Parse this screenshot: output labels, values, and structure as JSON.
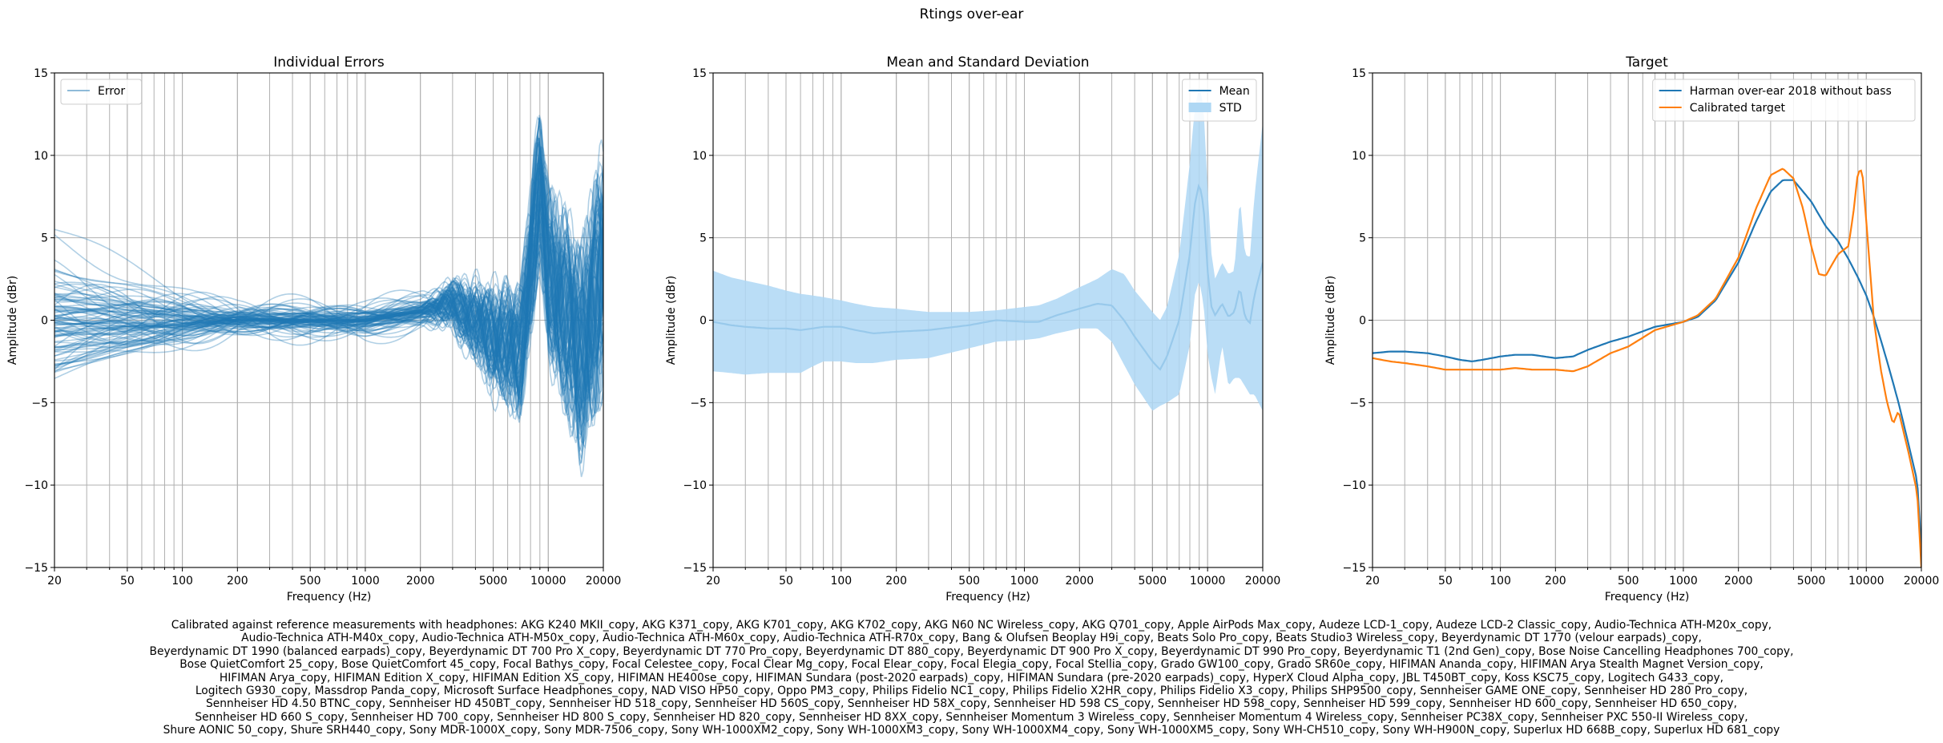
{
  "suptitle": "Rtings over-ear",
  "chart_data": [
    {
      "type": "line",
      "title": "Individual Errors",
      "xlabel": "Frequency (Hz)",
      "ylabel": "Amplitude (dBr)",
      "xscale": "log",
      "xlim": [
        20,
        20000
      ],
      "ylim": [
        -15,
        15
      ],
      "xticks": [
        20,
        50,
        100,
        200,
        500,
        1000,
        2000,
        5000,
        10000,
        20000
      ],
      "xtick_labels": [
        "20",
        "50",
        "100",
        "200",
        "500",
        "1000",
        "2000",
        "5000",
        "10000",
        "20000"
      ],
      "yticks": [
        -15,
        -10,
        -5,
        0,
        5,
        10,
        15
      ],
      "ytick_labels": [
        "−15",
        "−10",
        "−5",
        "0",
        "5",
        "10",
        "15"
      ],
      "grid": true,
      "legend": {
        "position": "upper-left",
        "entries": [
          "Error"
        ]
      },
      "series": [
        {
          "name": "Error",
          "color": "#1f77b4",
          "alpha": 0.35,
          "count": 97,
          "x": [
            20,
            50,
            100,
            200,
            500,
            1000,
            2000,
            3000,
            5000,
            7000,
            9000,
            10000,
            15000,
            20000
          ],
          "values": [
            0,
            0,
            0,
            0,
            0,
            0,
            0.5,
            1,
            -1,
            -2,
            8,
            3,
            -2,
            3
          ]
        }
      ]
    },
    {
      "type": "line",
      "title": "Mean and Standard Deviation",
      "xlabel": "Frequency (Hz)",
      "ylabel": "Amplitude (dBr)",
      "xscale": "log",
      "xlim": [
        20,
        20000
      ],
      "ylim": [
        -15,
        15
      ],
      "xticks": [
        20,
        50,
        100,
        200,
        500,
        1000,
        2000,
        5000,
        10000,
        20000
      ],
      "xtick_labels": [
        "20",
        "50",
        "100",
        "200",
        "500",
        "1000",
        "2000",
        "5000",
        "10000",
        "20000"
      ],
      "yticks": [
        -15,
        -10,
        -5,
        0,
        5,
        10,
        15
      ],
      "ytick_labels": [
        "−15",
        "−10",
        "−5",
        "0",
        "5",
        "10",
        "15"
      ],
      "grid": true,
      "legend": {
        "position": "upper-right",
        "entries": [
          "Mean",
          "STD"
        ]
      },
      "series": [
        {
          "name": "Mean",
          "color": "#1f77b4",
          "x": [
            20,
            25,
            30,
            40,
            50,
            60,
            70,
            80,
            100,
            120,
            150,
            200,
            300,
            500,
            700,
            1000,
            1200,
            1500,
            2000,
            2500,
            3000,
            3500,
            4000,
            5000,
            5500,
            6000,
            7000,
            8000,
            8500,
            9000,
            9500,
            10000,
            10500,
            11000,
            12000,
            13000,
            14000,
            15000,
            16000,
            17000,
            18000,
            20000
          ],
          "values": [
            -0.1,
            -0.3,
            -0.4,
            -0.5,
            -0.5,
            -0.6,
            -0.5,
            -0.4,
            -0.4,
            -0.6,
            -0.8,
            -0.7,
            -0.6,
            -0.3,
            0.0,
            -0.1,
            -0.1,
            0.3,
            0.7,
            1.0,
            0.9,
            0.0,
            -1.0,
            -2.5,
            -3.0,
            -2.2,
            0.0,
            4.0,
            7.0,
            8.3,
            7.0,
            3.0,
            0.8,
            0.3,
            1.0,
            0.2,
            0.5,
            2.0,
            0.2,
            -0.2,
            1.5,
            3.5
          ]
        },
        {
          "name": "STD",
          "color": "#aed7f4",
          "type": "band",
          "x": [
            20,
            25,
            30,
            40,
            50,
            60,
            70,
            80,
            100,
            120,
            150,
            200,
            300,
            500,
            700,
            1000,
            1200,
            1500,
            2000,
            2500,
            3000,
            3500,
            4000,
            5000,
            5500,
            6000,
            7000,
            8000,
            8500,
            9000,
            9500,
            10000,
            10500,
            11000,
            12000,
            13000,
            14000,
            15000,
            16000,
            17000,
            18000,
            20000
          ],
          "upper": [
            3.0,
            2.6,
            2.4,
            2.1,
            1.8,
            1.6,
            1.5,
            1.4,
            1.2,
            1.0,
            0.8,
            0.7,
            0.5,
            0.5,
            0.6,
            0.8,
            0.9,
            1.3,
            2.0,
            2.5,
            3.1,
            2.8,
            1.8,
            0.5,
            0.0,
            0.8,
            4.0,
            9.5,
            12.8,
            14.2,
            13.0,
            8.0,
            4.0,
            2.5,
            3.5,
            2.8,
            3.0,
            7.5,
            4.0,
            3.8,
            7.5,
            12.0
          ],
          "lower": [
            -3.1,
            -3.2,
            -3.3,
            -3.2,
            -3.2,
            -3.2,
            -2.8,
            -2.5,
            -2.5,
            -2.6,
            -2.6,
            -2.4,
            -2.3,
            -1.7,
            -1.3,
            -1.2,
            -1.1,
            -0.8,
            -0.5,
            -0.5,
            -1.3,
            -2.7,
            -3.9,
            -5.5,
            -5.2,
            -5.0,
            -4.5,
            -1.5,
            1.5,
            2.4,
            1.0,
            -2.0,
            -3.5,
            -4.5,
            -1.5,
            -4.0,
            -3.5,
            -3.5,
            -4.0,
            -4.5,
            -4.5,
            -5.5
          ]
        }
      ]
    },
    {
      "type": "line",
      "title": "Target",
      "xlabel": "Frequency (Hz)",
      "ylabel": "Amplitude (dBr)",
      "xscale": "log",
      "xlim": [
        20,
        20000
      ],
      "ylim": [
        -15,
        15
      ],
      "xticks": [
        20,
        50,
        100,
        200,
        500,
        1000,
        2000,
        5000,
        10000,
        20000
      ],
      "xtick_labels": [
        "20",
        "50",
        "100",
        "200",
        "500",
        "1000",
        "2000",
        "5000",
        "10000",
        "20000"
      ],
      "yticks": [
        -15,
        -10,
        -5,
        0,
        5,
        10,
        15
      ],
      "ytick_labels": [
        "−15",
        "−10",
        "−5",
        "0",
        "5",
        "10",
        "15"
      ],
      "grid": true,
      "legend": {
        "position": "upper-right",
        "entries": [
          "Harman over-ear 2018 without bass",
          "Calibrated target"
        ]
      },
      "series": [
        {
          "name": "Harman over-ear 2018 without bass",
          "color": "#1f77b4",
          "x": [
            20,
            25,
            30,
            40,
            50,
            60,
            70,
            80,
            100,
            120,
            150,
            200,
            250,
            300,
            400,
            500,
            700,
            1000,
            1200,
            1500,
            2000,
            2500,
            3000,
            3500,
            4000,
            5000,
            6000,
            7000,
            8000,
            9000,
            10000,
            11000,
            12000,
            13000,
            15000,
            17000,
            19000,
            20000
          ],
          "values": [
            -2.0,
            -1.9,
            -1.9,
            -2.0,
            -2.2,
            -2.4,
            -2.5,
            -2.4,
            -2.2,
            -2.1,
            -2.1,
            -2.3,
            -2.2,
            -1.8,
            -1.3,
            -1.0,
            -0.4,
            -0.1,
            0.2,
            1.2,
            3.5,
            6.0,
            7.8,
            8.5,
            8.5,
            7.2,
            5.7,
            4.8,
            3.7,
            2.6,
            1.5,
            0.2,
            -1.2,
            -2.5,
            -5.0,
            -7.5,
            -9.8,
            -14.0
          ]
        },
        {
          "name": "Calibrated target",
          "color": "#ff7f0e",
          "x": [
            20,
            25,
            30,
            40,
            50,
            60,
            70,
            80,
            100,
            120,
            150,
            200,
            250,
            300,
            400,
            500,
            700,
            1000,
            1200,
            1500,
            2000,
            2500,
            3000,
            3500,
            4000,
            4500,
            5000,
            5500,
            6000,
            7000,
            8000,
            8500,
            9000,
            9500,
            10000,
            11000,
            12000,
            13000,
            14000,
            15000,
            17000,
            19000,
            20000
          ],
          "values": [
            -2.3,
            -2.5,
            -2.6,
            -2.8,
            -3.0,
            -3.0,
            -3.0,
            -3.0,
            -3.0,
            -2.9,
            -3.0,
            -3.0,
            -3.1,
            -2.8,
            -2.0,
            -1.6,
            -0.6,
            -0.1,
            0.3,
            1.3,
            3.8,
            6.8,
            8.8,
            9.2,
            8.6,
            6.8,
            4.5,
            2.8,
            2.7,
            4.0,
            4.5,
            6.5,
            9.0,
            9.1,
            6.0,
            0.0,
            -3.0,
            -5.0,
            -6.3,
            -5.5,
            -8.0,
            -10.5,
            -15.0
          ]
        }
      ]
    }
  ],
  "footer": [
    "Calibrated against reference measurements with headphones: AKG K240 MKII_copy, AKG K371_copy, AKG K701_copy, AKG K702_copy, AKG N60 NC Wireless_copy, AKG Q701_copy, Apple AirPods Max_copy, Audeze LCD-1_copy, Audeze LCD-2 Classic_copy, Audio-Technica ATH-M20x_copy,",
    "Audio-Technica ATH-M40x_copy, Audio-Technica ATH-M50x_copy, Audio-Technica ATH-M60x_copy, Audio-Technica ATH-R70x_copy, Bang & Olufsen Beoplay H9i_copy, Beats Solo Pro_copy, Beats Studio3 Wireless_copy, Beyerdynamic DT 1770 (velour earpads)_copy,",
    "Beyerdynamic DT 1990 (balanced earpads)_copy, Beyerdynamic DT 700 Pro X_copy, Beyerdynamic DT 770 Pro_copy, Beyerdynamic DT 880_copy, Beyerdynamic DT 900 Pro X_copy, Beyerdynamic DT 990 Pro_copy, Beyerdynamic T1 (2nd Gen)_copy, Bose Noise Cancelling Headphones 700_copy,",
    "Bose QuietComfort 25_copy, Bose QuietComfort 45_copy, Focal Bathys_copy, Focal Celestee_copy, Focal Clear Mg_copy, Focal Elear_copy, Focal Elegia_copy, Focal Stellia_copy, Grado GW100_copy, Grado SR60e_copy, HIFIMAN Ananda_copy, HIFIMAN Arya Stealth Magnet Version_copy,",
    "HIFIMAN Arya_copy, HIFIMAN Edition X_copy, HIFIMAN Edition XS_copy, HIFIMAN HE400se_copy, HIFIMAN Sundara (post-2020 earpads)_copy, HIFIMAN Sundara (pre-2020 earpads)_copy, HyperX Cloud Alpha_copy, JBL T450BT_copy, Koss KSC75_copy, Logitech G433_copy,",
    "Logitech G930_copy, Massdrop Panda_copy, Microsoft Surface Headphones_copy, NAD VISO HP50_copy, Oppo PM3_copy, Philips Fidelio NC1_copy, Philips Fidelio X2HR_copy, Philips Fidelio X3_copy, Philips SHP9500_copy, Sennheiser GAME ONE_copy, Sennheiser HD 280 Pro_copy,",
    "Sennheiser HD 4.50 BTNC_copy, Sennheiser HD 450BT_copy, Sennheiser HD 518_copy, Sennheiser HD 560S_copy, Sennheiser HD 58X_copy, Sennheiser HD 598 CS_copy, Sennheiser HD 598_copy, Sennheiser HD 599_copy, Sennheiser HD 600_copy, Sennheiser HD 650_copy,",
    "Sennheiser HD 660 S_copy, Sennheiser HD 700_copy, Sennheiser HD 800 S_copy, Sennheiser HD 820_copy, Sennheiser HD 8XX_copy, Sennheiser Momentum 3 Wireless_copy, Sennheiser Momentum 4 Wireless_copy, Sennheiser PC38X_copy, Sennheiser PXC 550-II Wireless_copy,",
    "Shure AONIC 50_copy, Shure SRH440_copy, Sony MDR-1000X_copy, Sony MDR-7506_copy, Sony WH-1000XM2_copy, Sony WH-1000XM3_copy, Sony WH-1000XM4_copy, Sony WH-1000XM5_copy, Sony WH-CH510_copy, Sony WH-H900N_copy, Superlux HD 668B_copy, Superlux HD 681_copy"
  ]
}
